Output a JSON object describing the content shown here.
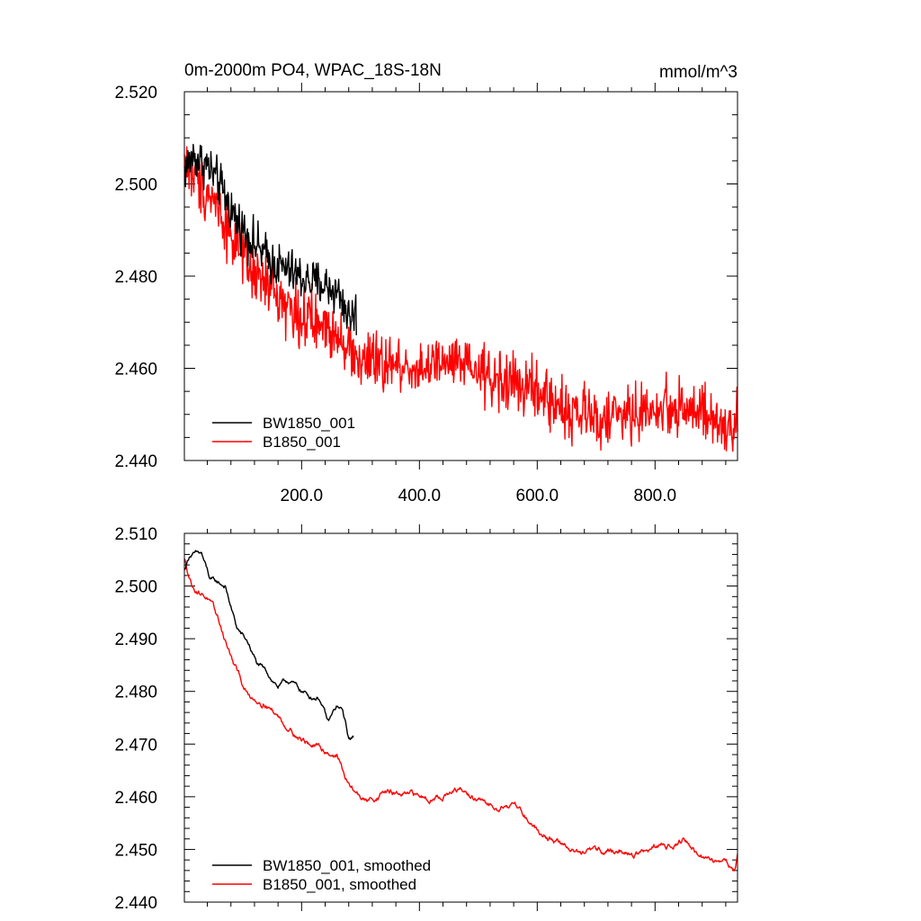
{
  "colors": {
    "series_a": "#000000",
    "series_b": "#ff0000",
    "axis": "#000000",
    "background": "#ffffff"
  },
  "chart_data": [
    {
      "type": "line",
      "title": "0m-2000m PO4, WPAC_18S-18N",
      "units": "mmol/m^3",
      "xlim": [
        1,
        940
      ],
      "ylim": [
        2.44,
        2.52
      ],
      "x_ticks": [
        200,
        400,
        600,
        800
      ],
      "x_tick_labels": [
        "200.0",
        "400.0",
        "600.0",
        "800.0"
      ],
      "y_ticks": [
        2.44,
        2.46,
        2.48,
        2.5,
        2.52
      ],
      "y_tick_labels": [
        "2.440",
        "2.460",
        "2.480",
        "2.500",
        "2.520"
      ],
      "legend_position": "bottom-left",
      "series": [
        {
          "name": "BW1850_001",
          "color": "#000000",
          "end_x": 293,
          "noise": 0.0035,
          "trend": [
            [
              1,
              2.503
            ],
            [
              15,
              2.506
            ],
            [
              40,
              2.504
            ],
            [
              60,
              2.5
            ],
            [
              90,
              2.492
            ],
            [
              120,
              2.487
            ],
            [
              150,
              2.483
            ],
            [
              180,
              2.481
            ],
            [
              210,
              2.479
            ],
            [
              240,
              2.478
            ],
            [
              265,
              2.476
            ],
            [
              280,
              2.471
            ],
            [
              293,
              2.472
            ]
          ]
        },
        {
          "name": "B1850_001",
          "color": "#ff0000",
          "end_x": 940,
          "noise": 0.0045,
          "trend": [
            [
              1,
              2.505
            ],
            [
              20,
              2.501
            ],
            [
              50,
              2.497
            ],
            [
              80,
              2.489
            ],
            [
              110,
              2.481
            ],
            [
              150,
              2.477
            ],
            [
              190,
              2.472
            ],
            [
              230,
              2.469
            ],
            [
              265,
              2.468
            ],
            [
              290,
              2.462
            ],
            [
              330,
              2.461
            ],
            [
              400,
              2.46
            ],
            [
              460,
              2.461
            ],
            [
              520,
              2.458
            ],
            [
              580,
              2.456
            ],
            [
              650,
              2.451
            ],
            [
              700,
              2.449
            ],
            [
              760,
              2.45
            ],
            [
              850,
              2.452
            ],
            [
              900,
              2.448
            ],
            [
              930,
              2.446
            ],
            [
              940,
              2.449
            ]
          ]
        }
      ]
    },
    {
      "type": "line",
      "title": "",
      "units": "",
      "xlim": [
        1,
        940
      ],
      "ylim": [
        2.44,
        2.51
      ],
      "x_ticks": [
        200,
        400,
        600,
        800
      ],
      "x_tick_labels": [],
      "y_ticks": [
        2.44,
        2.45,
        2.46,
        2.47,
        2.48,
        2.49,
        2.5,
        2.51
      ],
      "y_tick_labels": [
        "2.440",
        "2.450",
        "2.460",
        "2.470",
        "2.480",
        "2.490",
        "2.500",
        "2.510"
      ],
      "legend_position": "bottom-left",
      "series": [
        {
          "name": "BW1850_001, smoothed",
          "color": "#000000",
          "end_x": 288,
          "noise": 0.0006,
          "trend": [
            [
              1,
              2.503
            ],
            [
              10,
              2.506
            ],
            [
              30,
              2.506
            ],
            [
              45,
              2.501
            ],
            [
              70,
              2.5
            ],
            [
              90,
              2.492
            ],
            [
              110,
              2.489
            ],
            [
              125,
              2.485
            ],
            [
              145,
              2.483
            ],
            [
              160,
              2.481
            ],
            [
              180,
              2.482
            ],
            [
              200,
              2.48
            ],
            [
              215,
              2.479
            ],
            [
              230,
              2.479
            ],
            [
              245,
              2.474
            ],
            [
              260,
              2.477
            ],
            [
              270,
              2.476
            ],
            [
              280,
              2.471
            ],
            [
              288,
              2.471
            ]
          ]
        },
        {
          "name": "B1850_001, smoothed",
          "color": "#ff0000",
          "end_x": 940,
          "noise": 0.0007,
          "trend": [
            [
              1,
              2.505
            ],
            [
              15,
              2.5
            ],
            [
              40,
              2.498
            ],
            [
              60,
              2.493
            ],
            [
              85,
              2.485
            ],
            [
              110,
              2.479
            ],
            [
              140,
              2.478
            ],
            [
              170,
              2.474
            ],
            [
              200,
              2.471
            ],
            [
              230,
              2.469
            ],
            [
              260,
              2.468
            ],
            [
              280,
              2.462
            ],
            [
              310,
              2.459
            ],
            [
              340,
              2.461
            ],
            [
              380,
              2.46
            ],
            [
              420,
              2.46
            ],
            [
              470,
              2.461
            ],
            [
              520,
              2.458
            ],
            [
              560,
              2.459
            ],
            [
              600,
              2.454
            ],
            [
              640,
              2.451
            ],
            [
              680,
              2.449
            ],
            [
              720,
              2.45
            ],
            [
              760,
              2.449
            ],
            [
              800,
              2.45
            ],
            [
              850,
              2.452
            ],
            [
              880,
              2.448
            ],
            [
              920,
              2.448
            ],
            [
              935,
              2.446
            ],
            [
              940,
              2.449
            ]
          ]
        }
      ]
    }
  ]
}
